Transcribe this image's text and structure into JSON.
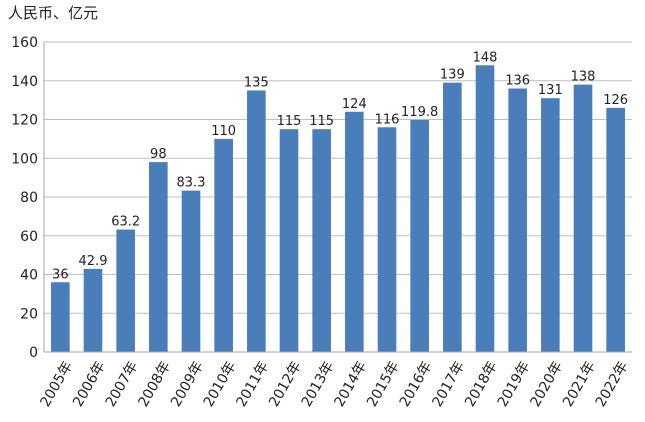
{
  "chart_data": {
    "type": "bar",
    "unit_label": "人民币、亿元",
    "categories": [
      "2005年",
      "2006年",
      "2007年",
      "2008年",
      "2009年",
      "2010年",
      "2011年",
      "2012年",
      "2013年",
      "2014年",
      "2015年",
      "2016年",
      "2017年",
      "2018年",
      "2019年",
      "2020年",
      "2021年",
      "2022年"
    ],
    "values": [
      36,
      42.9,
      63.2,
      98,
      83.3,
      110,
      135,
      115,
      115,
      124,
      116,
      119.8,
      139,
      148,
      136,
      131,
      138,
      126
    ],
    "value_labels": [
      "36",
      "42.9",
      "63.2",
      "98",
      "83.3",
      "110",
      "135",
      "115",
      "115",
      "124",
      "116",
      "119.8",
      "139",
      "148",
      "136",
      "131",
      "138",
      "126"
    ],
    "ylim": [
      0,
      160
    ],
    "yticks": [
      0,
      20,
      40,
      60,
      80,
      100,
      120,
      140,
      160
    ],
    "grid": true,
    "bar_color": "#4a7ebb",
    "grid_color": "#bfbfbf",
    "text_color": "#222222"
  }
}
